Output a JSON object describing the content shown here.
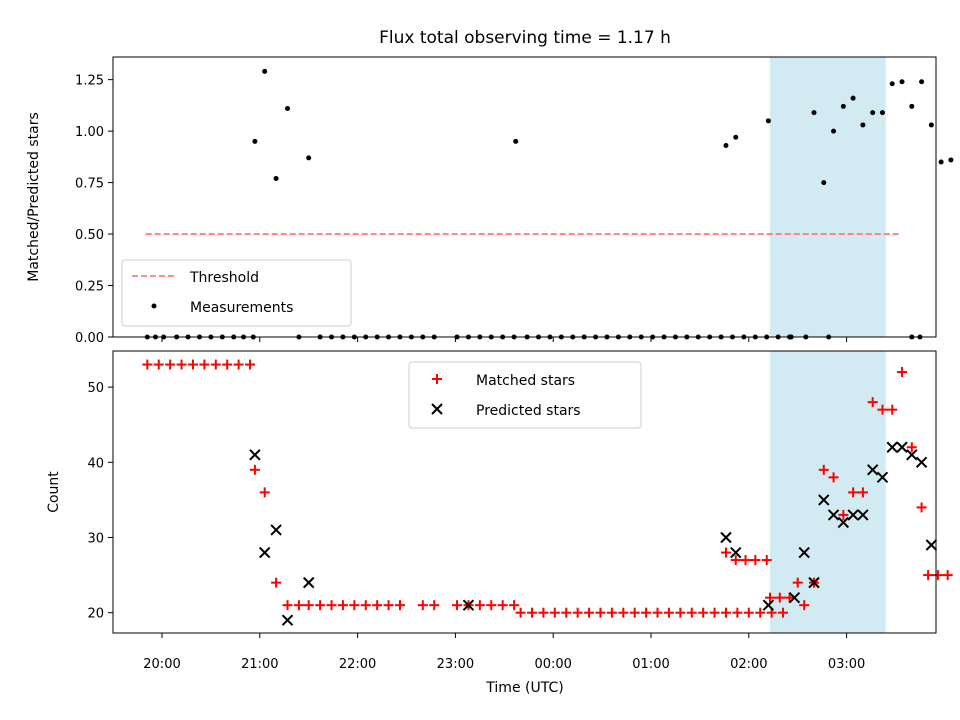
{
  "chart_data": [
    {
      "type": "scatter",
      "title": "Flux total observing time = 1.17 h",
      "ylabel": "Matched/Predicted stars",
      "xlabel": "",
      "ylim": [
        0,
        1.36
      ],
      "yticks": [
        "0.00",
        "0.25",
        "0.50",
        "0.75",
        "1.00",
        "1.25"
      ],
      "ytick_values": [
        0,
        0.25,
        0.5,
        0.75,
        1.0,
        1.25
      ],
      "shaded_span": [
        "02:13",
        "03:24"
      ],
      "shaded_color": "#add8e6",
      "threshold": {
        "name": "Threshold",
        "value": 0.5,
        "x_start": "19:50",
        "x_end": "03:33",
        "color": "#ff7f7f"
      },
      "series": [
        {
          "name": "Measurements",
          "color": "#000000",
          "points": [
            [
              "19:51",
              0
            ],
            [
              "19:56",
              0
            ],
            [
              "20:01",
              0
            ],
            [
              "20:09",
              0
            ],
            [
              "20:16",
              0
            ],
            [
              "20:23",
              0
            ],
            [
              "20:30",
              0
            ],
            [
              "20:37",
              0
            ],
            [
              "20:44",
              0
            ],
            [
              "20:50",
              0
            ],
            [
              "20:56",
              0
            ],
            [
              "20:57",
              0.95
            ],
            [
              "21:03",
              1.29
            ],
            [
              "21:10",
              0.77
            ],
            [
              "21:17",
              1.11
            ],
            [
              "21:24",
              0
            ],
            [
              "21:30",
              0.87
            ],
            [
              "21:37",
              0
            ],
            [
              "21:44",
              0
            ],
            [
              "21:51",
              0
            ],
            [
              "21:58",
              0
            ],
            [
              "22:05",
              0
            ],
            [
              "22:12",
              0
            ],
            [
              "22:19",
              0
            ],
            [
              "22:26",
              0
            ],
            [
              "22:33",
              0
            ],
            [
              "22:40",
              0
            ],
            [
              "22:47",
              0
            ],
            [
              "23:01",
              0
            ],
            [
              "23:08",
              0
            ],
            [
              "23:15",
              0
            ],
            [
              "23:22",
              0
            ],
            [
              "23:29",
              0
            ],
            [
              "23:36",
              0
            ],
            [
              "23:44",
              0
            ],
            [
              "23:51",
              0
            ],
            [
              "23:58",
              0
            ],
            [
              "00:05",
              0
            ],
            [
              "00:12",
              0
            ],
            [
              "00:19",
              0
            ],
            [
              "00:26",
              0
            ],
            [
              "00:33",
              0
            ],
            [
              "00:40",
              0
            ],
            [
              "00:47",
              0
            ],
            [
              "00:54",
              0
            ],
            [
              "01:01",
              0
            ],
            [
              "01:08",
              0
            ],
            [
              "01:15",
              0
            ],
            [
              "01:22",
              0
            ],
            [
              "01:29",
              0
            ],
            [
              "01:36",
              0
            ],
            [
              "01:43",
              0
            ],
            [
              "01:50",
              0
            ],
            [
              "01:57",
              0
            ],
            [
              "02:04",
              0
            ],
            [
              "02:11",
              0
            ],
            [
              "02:18",
              0
            ],
            [
              "02:25",
              0
            ],
            [
              "23:37",
              0.95
            ],
            [
              "01:46",
              0.93
            ],
            [
              "01:52",
              0.97
            ],
            [
              "02:12",
              1.05
            ],
            [
              "02:26",
              0
            ],
            [
              "02:35",
              0
            ],
            [
              "02:49",
              0
            ],
            [
              "03:40",
              0
            ],
            [
              "03:45",
              0
            ],
            [
              "02:40",
              1.09
            ],
            [
              "02:46",
              0.75
            ],
            [
              "02:52",
              1.0
            ],
            [
              "02:58",
              1.12
            ],
            [
              "03:04",
              1.16
            ],
            [
              "03:10",
              1.03
            ],
            [
              "03:16",
              1.09
            ],
            [
              "03:22",
              1.09
            ],
            [
              "03:28",
              1.23
            ],
            [
              "03:34",
              1.24
            ],
            [
              "03:40",
              1.12
            ],
            [
              "03:46",
              1.24
            ],
            [
              "03:52",
              1.03
            ],
            [
              "03:58",
              0.85
            ],
            [
              "04:04",
              0.86
            ]
          ]
        }
      ],
      "legend": {
        "placement": "lower-left",
        "entries": [
          "Threshold",
          "Measurements"
        ]
      }
    },
    {
      "type": "scatter",
      "title": "",
      "xlabel": "Time (UTC)",
      "ylabel": "Count",
      "ylim": [
        17.3,
        54.8
      ],
      "yticks": [
        "20",
        "30",
        "40",
        "50"
      ],
      "ytick_values": [
        20,
        30,
        40,
        50
      ],
      "xticks": [
        "20:00",
        "21:00",
        "22:00",
        "23:00",
        "00:00",
        "01:00",
        "02:00",
        "03:00"
      ],
      "xlim": [
        "19:30",
        "03:50"
      ],
      "legend": {
        "placement": "upper-center",
        "entries": [
          "Matched stars",
          "Predicted stars"
        ]
      },
      "series": [
        {
          "name": "Matched stars",
          "marker": "plus",
          "color": "#ff0000",
          "points": [
            [
              "19:51",
              53
            ],
            [
              "19:58",
              53
            ],
            [
              "20:05",
              53
            ],
            [
              "20:12",
              53
            ],
            [
              "20:19",
              53
            ],
            [
              "20:26",
              53
            ],
            [
              "20:33",
              53
            ],
            [
              "20:40",
              53
            ],
            [
              "20:47",
              53
            ],
            [
              "20:54",
              53
            ],
            [
              "20:57",
              39
            ],
            [
              "21:03",
              36
            ],
            [
              "21:10",
              24
            ],
            [
              "21:17",
              21
            ],
            [
              "21:24",
              21
            ],
            [
              "21:30",
              21
            ],
            [
              "21:37",
              21
            ],
            [
              "21:44",
              21
            ],
            [
              "21:51",
              21
            ],
            [
              "21:58",
              21
            ],
            [
              "22:05",
              21
            ],
            [
              "22:12",
              21
            ],
            [
              "22:19",
              21
            ],
            [
              "22:26",
              21
            ],
            [
              "22:40",
              21
            ],
            [
              "22:47",
              21
            ],
            [
              "23:01",
              21
            ],
            [
              "23:08",
              21
            ],
            [
              "23:15",
              21
            ],
            [
              "23:22",
              21
            ],
            [
              "23:29",
              21
            ],
            [
              "23:36",
              21
            ],
            [
              "23:40",
              20
            ],
            [
              "23:47",
              20
            ],
            [
              "23:54",
              20
            ],
            [
              "00:01",
              20
            ],
            [
              "00:08",
              20
            ],
            [
              "00:15",
              20
            ],
            [
              "00:22",
              20
            ],
            [
              "00:29",
              20
            ],
            [
              "00:36",
              20
            ],
            [
              "00:43",
              20
            ],
            [
              "00:50",
              20
            ],
            [
              "00:57",
              20
            ],
            [
              "01:04",
              20
            ],
            [
              "01:11",
              20
            ],
            [
              "01:18",
              20
            ],
            [
              "01:25",
              20
            ],
            [
              "01:32",
              20
            ],
            [
              "01:39",
              20
            ],
            [
              "01:46",
              20
            ],
            [
              "01:53",
              20
            ],
            [
              "02:00",
              20
            ],
            [
              "02:07",
              20
            ],
            [
              "02:14",
              20
            ],
            [
              "02:21",
              20
            ],
            [
              "01:46",
              28
            ],
            [
              "01:52",
              27
            ],
            [
              "01:58",
              27
            ],
            [
              "02:04",
              27
            ],
            [
              "02:11",
              27
            ],
            [
              "02:13",
              22
            ],
            [
              "02:19",
              22
            ],
            [
              "02:25",
              22
            ],
            [
              "02:30",
              24
            ],
            [
              "02:34",
              21
            ],
            [
              "02:40",
              24
            ],
            [
              "02:46",
              39
            ],
            [
              "02:52",
              38
            ],
            [
              "02:58",
              33
            ],
            [
              "03:04",
              36
            ],
            [
              "03:10",
              36
            ],
            [
              "03:16",
              48
            ],
            [
              "03:22",
              47
            ],
            [
              "03:28",
              47
            ],
            [
              "03:34",
              52
            ],
            [
              "03:40",
              42
            ],
            [
              "03:46",
              34
            ],
            [
              "03:50",
              25
            ],
            [
              "03:56",
              25
            ],
            [
              "04:02",
              25
            ]
          ]
        },
        {
          "name": "Predicted stars",
          "marker": "x",
          "color": "#000000",
          "points": [
            [
              "20:57",
              41
            ],
            [
              "21:03",
              28
            ],
            [
              "21:10",
              31
            ],
            [
              "21:17",
              19
            ],
            [
              "21:30",
              24
            ],
            [
              "23:08",
              21
            ],
            [
              "01:46",
              30
            ],
            [
              "01:52",
              28
            ],
            [
              "02:12",
              21
            ],
            [
              "02:28",
              22
            ],
            [
              "02:34",
              28
            ],
            [
              "02:40",
              24
            ],
            [
              "02:46",
              35
            ],
            [
              "02:52",
              33
            ],
            [
              "02:58",
              32
            ],
            [
              "03:04",
              33
            ],
            [
              "03:10",
              33
            ],
            [
              "03:16",
              39
            ],
            [
              "03:22",
              38
            ],
            [
              "03:28",
              42
            ],
            [
              "03:34",
              42
            ],
            [
              "03:40",
              41
            ],
            [
              "03:46",
              40
            ],
            [
              "03:52",
              29
            ]
          ]
        }
      ]
    }
  ]
}
